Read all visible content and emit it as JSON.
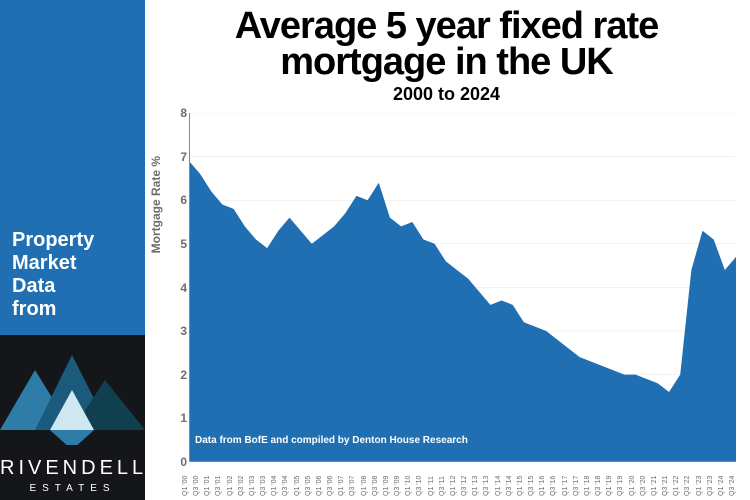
{
  "sidebar": {
    "heading_lines": [
      "Property",
      "Market",
      "Data",
      "from"
    ],
    "heading_color": "#ffffff",
    "background_color": "#1f6fb2",
    "logo": {
      "name": "RIVENDELL",
      "subname": "ESTATES",
      "bg": "#14161a",
      "mountain_colors": [
        "#2d7da8",
        "#1a5a7a",
        "#104050",
        "#cfe8ef"
      ]
    }
  },
  "chart": {
    "type": "area",
    "title": "Average 5 year fixed rate mortgage in the UK",
    "subtitle": "2000 to 2024",
    "ylabel": "Mortgage Rate %",
    "attribution": "Data from BofE and compiled by Denton House Research",
    "title_fontsize": 38,
    "subtitle_fontsize": 18,
    "ylabel_fontsize": 12,
    "fill_color": "#1f6fb2",
    "grid_color": "#d0d0d0",
    "axis_color": "#888888",
    "label_color": "#6e6e6e",
    "background_color": "#ffffff",
    "ylim": [
      0,
      8
    ],
    "ytick_step": 1,
    "x_labels": [
      "Q1 '00",
      "Q3 '00",
      "Q1 '01",
      "Q3 '01",
      "Q1 '02",
      "Q3 '02",
      "Q1 '03",
      "Q3 '03",
      "Q1 '04",
      "Q3 '04",
      "Q1 '05",
      "Q3 '05",
      "Q1 '06",
      "Q3 '06",
      "Q1 '07",
      "Q3 '07",
      "Q1 '08",
      "Q3 '08",
      "Q1 '09",
      "Q3 '09",
      "Q1 '10",
      "Q3 '10",
      "Q1 '11",
      "Q3 '11",
      "Q1 '12",
      "Q3 '12",
      "Q1 '13",
      "Q3 '13",
      "Q1 '14",
      "Q3 '14",
      "Q1 '15",
      "Q3 '15",
      "Q1 '16",
      "Q3 '16",
      "Q1 '17",
      "Q3 '17",
      "Q1 '18",
      "Q3 '18",
      "Q1 '19",
      "Q3 '19",
      "Q1 '20",
      "Q3 '20",
      "Q1 '21",
      "Q3 '21",
      "Q1 '22",
      "Q3 '22",
      "Q1 '23",
      "Q3 '23",
      "Q1 '24",
      "Q3 '24"
    ],
    "values": [
      6.9,
      6.6,
      6.2,
      5.9,
      5.8,
      5.4,
      5.1,
      4.9,
      5.3,
      5.6,
      5.3,
      5.0,
      5.2,
      5.4,
      5.7,
      6.1,
      6.0,
      6.4,
      5.6,
      5.4,
      5.5,
      5.1,
      5.0,
      4.6,
      4.4,
      4.2,
      3.9,
      3.6,
      3.7,
      3.6,
      3.2,
      3.1,
      3.0,
      2.8,
      2.6,
      2.4,
      2.3,
      2.2,
      2.1,
      2.0,
      2.0,
      1.9,
      1.8,
      1.6,
      2.0,
      4.4,
      5.3,
      5.1,
      4.4,
      4.7
    ]
  }
}
